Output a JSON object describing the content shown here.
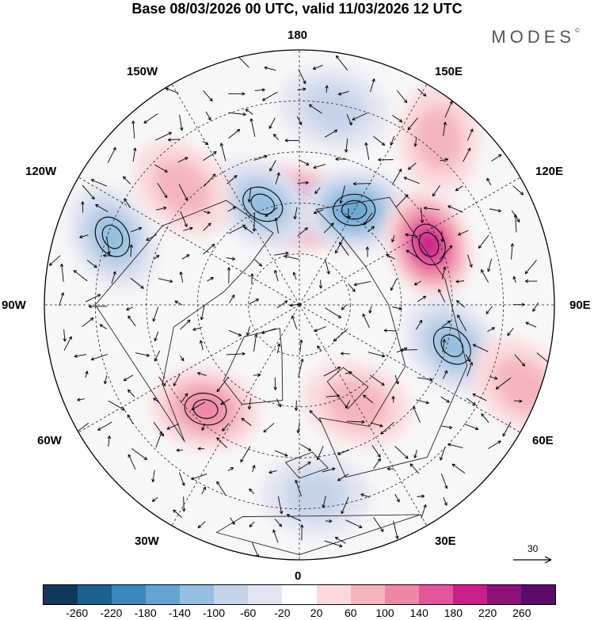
{
  "title": "Base 08/03/2026 00 UTC, valid 11/03/2026 12 UTC",
  "brand": "MODES",
  "brand_mark": "©",
  "longitude_labels": {
    "top": "180",
    "bottom": "0",
    "left": "90W",
    "right": "90E",
    "upper_left_1": "150W",
    "upper_left_2": "120W",
    "upper_right_1": "150E",
    "upper_right_2": "120E",
    "lower_left_1": "60W",
    "lower_left_2": "30W",
    "lower_right_1": "60E",
    "lower_right_2": "30E"
  },
  "reference_vector": "30",
  "colorbar": {
    "colors": [
      "#13375a",
      "#1d6190",
      "#3b86bd",
      "#64a4d2",
      "#95bee0",
      "#c5d3ea",
      "#e3e4f1",
      "#ffffff",
      "#fbdadd",
      "#f4b4bd",
      "#ee88a8",
      "#e3549b",
      "#c81f88",
      "#8e1178",
      "#5b0c6a"
    ],
    "tick_labels": [
      "-260",
      "-220",
      "-180",
      "-140",
      "-100",
      "-60",
      "-20",
      "20",
      "60",
      "100",
      "140",
      "180",
      "220",
      "260"
    ]
  },
  "anomalies": [
    {
      "sign": "pos",
      "level": 4,
      "lon": 180,
      "r": 0.38
    },
    {
      "sign": "neg",
      "level": 3,
      "lon": 150,
      "r": 0.43
    },
    {
      "sign": "neg",
      "level": 2,
      "lon": 200,
      "r": 0.42
    },
    {
      "sign": "neg",
      "level": 1,
      "lon": 170,
      "r": 0.78
    },
    {
      "sign": "pos",
      "level": 1,
      "lon": 140,
      "r": 0.85
    },
    {
      "sign": "pos",
      "level": 4,
      "lon": 115,
      "r": 0.56
    },
    {
      "sign": "neg",
      "level": 2,
      "lon": 75,
      "r": 0.62
    },
    {
      "sign": "neg",
      "level": 2,
      "lon": 250,
      "r": 0.78
    },
    {
      "sign": "pos",
      "level": 1,
      "lon": 225,
      "r": 0.65
    },
    {
      "sign": "pos",
      "level": 2,
      "lon": 318,
      "r": 0.55
    },
    {
      "sign": "pos",
      "level": 1,
      "lon": 30,
      "r": 0.45
    },
    {
      "sign": "neg",
      "level": 1,
      "lon": 5,
      "r": 0.75
    },
    {
      "sign": "pos",
      "level": 1,
      "lon": 70,
      "r": 0.93
    }
  ]
}
